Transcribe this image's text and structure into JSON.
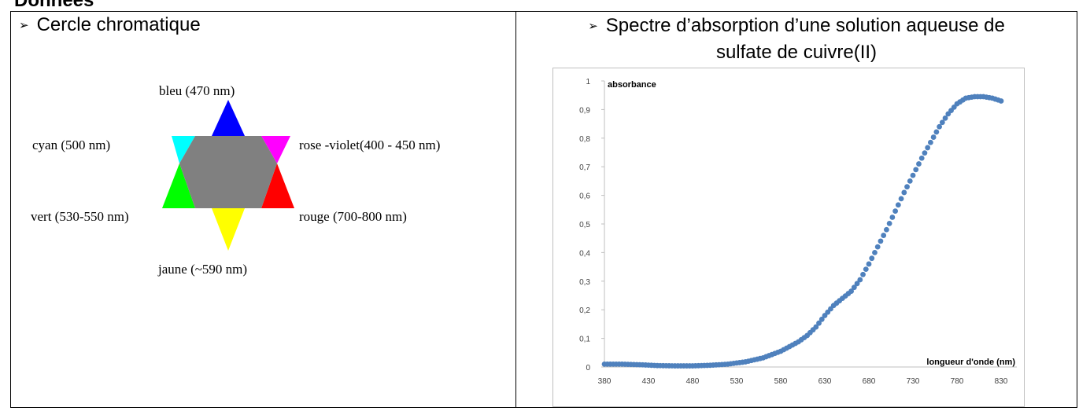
{
  "heading": "Données",
  "bullet": "➢",
  "left_panel": {
    "title": "Cercle chromatique",
    "labels": {
      "blue": "bleu (470 nm)",
      "cyan": "cyan (500 nm)",
      "pink": "rose -violet(400 - 450 nm)",
      "green": "vert (530-550 nm)",
      "red": "rouge (700-800 nm)",
      "yellow": "jaune (~590 nm)"
    },
    "colors": {
      "blue": "#0000ff",
      "magenta": "#ff00ff",
      "red": "#ff0000",
      "yellow": "#ffff00",
      "green": "#00ff00",
      "cyan": "#00ffff",
      "center": "#808080"
    }
  },
  "right_panel": {
    "title_line1": "Spectre d’absorption d’une solution aqueuse de",
    "title_line2": "sulfate de cuivre(II)"
  },
  "chart_data": {
    "type": "scatter",
    "ylabel": "absorbance",
    "xlabel": "longueur d'onde (nm)",
    "xlim": [
      380,
      830
    ],
    "ylim": [
      0,
      1
    ],
    "x_ticks": [
      "380",
      "430",
      "480",
      "530",
      "580",
      "630",
      "680",
      "730",
      "780",
      "830"
    ],
    "y_ticks": [
      "0",
      "0,1",
      "0,2",
      "0,3",
      "0,4",
      "0,5",
      "0,6",
      "0,7",
      "0,8",
      "0,9",
      "1"
    ],
    "marker_color": "#4f81bd",
    "series": [
      {
        "points": [
          [
            380,
            0.01
          ],
          [
            400,
            0.01
          ],
          [
            420,
            0.008
          ],
          [
            440,
            0.005
          ],
          [
            460,
            0.004
          ],
          [
            480,
            0.004
          ],
          [
            500,
            0.006
          ],
          [
            520,
            0.01
          ],
          [
            540,
            0.018
          ],
          [
            560,
            0.032
          ],
          [
            580,
            0.055
          ],
          [
            600,
            0.088
          ],
          [
            610,
            0.11
          ],
          [
            620,
            0.14
          ],
          [
            630,
            0.18
          ],
          [
            640,
            0.215
          ],
          [
            650,
            0.24
          ],
          [
            660,
            0.265
          ],
          [
            670,
            0.305
          ],
          [
            680,
            0.36
          ],
          [
            690,
            0.42
          ],
          [
            700,
            0.48
          ],
          [
            710,
            0.545
          ],
          [
            720,
            0.61
          ],
          [
            730,
            0.67
          ],
          [
            740,
            0.73
          ],
          [
            750,
            0.785
          ],
          [
            760,
            0.84
          ],
          [
            770,
            0.885
          ],
          [
            780,
            0.92
          ],
          [
            790,
            0.94
          ],
          [
            800,
            0.945
          ],
          [
            810,
            0.945
          ],
          [
            820,
            0.94
          ],
          [
            830,
            0.93
          ]
        ]
      }
    ]
  }
}
